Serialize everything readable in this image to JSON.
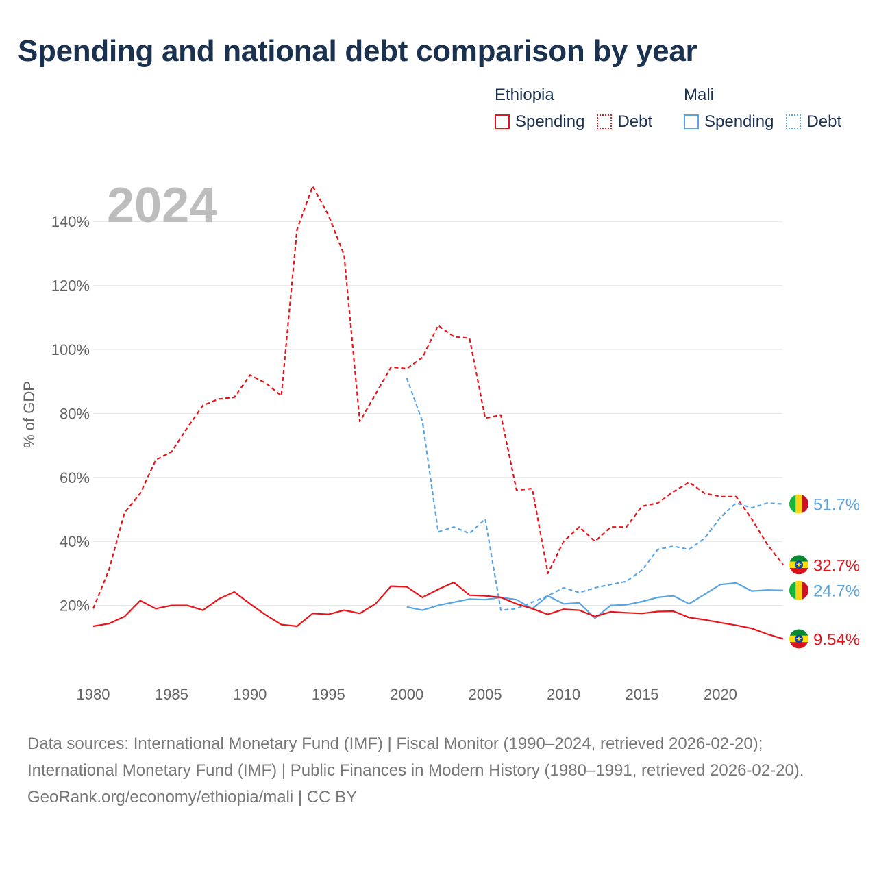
{
  "title": "Spending and national debt comparison by year",
  "legend": {
    "groups": [
      {
        "name": "Ethiopia",
        "spending_label": "Spending",
        "debt_label": "Debt",
        "color": "#e8141a"
      },
      {
        "name": "Mali",
        "spending_label": "Spending",
        "debt_label": "Debt",
        "color": "#5aa5e4"
      }
    ]
  },
  "footer": {
    "sources": "Data sources: International Monetary Fund (IMF) | Fiscal Monitor (1990–2024, retrieved 2026-02-20); International Monetary Fund (IMF) | Public Finances in Modern History (1980–1991, retrieved 2026-02-20).",
    "credit": "GeoRank.org/economy/ethiopia/mali | CC BY"
  },
  "chart_data": {
    "type": "line",
    "year_label": "2024",
    "ylabel": "% of GDP",
    "xlim": [
      1980,
      2024
    ],
    "ylim": [
      0,
      150
    ],
    "x_ticks": [
      1980,
      1985,
      1990,
      1995,
      2000,
      2005,
      2010,
      2015,
      2020
    ],
    "y_ticks": [
      20,
      40,
      60,
      80,
      100,
      120,
      140
    ],
    "y_tick_labels": [
      "20%",
      "40%",
      "60%",
      "80%",
      "100%",
      "120%",
      "140%"
    ],
    "series": [
      {
        "name": "Ethiopia Debt",
        "country": "Ethiopia",
        "measure": "Debt",
        "color": "#e8141a",
        "dashed": true,
        "end_label": "32.7%",
        "x": [
          1980,
          1981,
          1982,
          1983,
          1984,
          1985,
          1986,
          1987,
          1988,
          1989,
          1990,
          1991,
          1992,
          1993,
          1994,
          1995,
          1996,
          1997,
          1998,
          1999,
          2000,
          2001,
          2002,
          2003,
          2004,
          2005,
          2006,
          2007,
          2008,
          2009,
          2010,
          2011,
          2012,
          2013,
          2014,
          2015,
          2016,
          2017,
          2018,
          2019,
          2020,
          2021,
          2022,
          2023,
          2024
        ],
        "values": [
          19,
          31,
          49,
          55,
          65.5,
          68,
          75.5,
          82.5,
          84.5,
          85,
          92,
          89.5,
          85.5,
          137.5,
          151,
          142,
          129.5,
          77.5,
          86,
          94.5,
          94,
          97.5,
          107.5,
          104,
          103.5,
          78.5,
          79.5,
          56,
          56.5,
          30,
          40,
          44.5,
          40,
          44.5,
          44.5,
          51,
          52,
          55.5,
          58.5,
          55,
          54,
          54,
          47,
          39,
          32.7
        ]
      },
      {
        "name": "Mali Debt",
        "country": "Mali",
        "measure": "Debt",
        "color": "#5aa5e4",
        "dashed": true,
        "end_label": "51.7%",
        "x": [
          2000,
          2001,
          2002,
          2003,
          2004,
          2005,
          2006,
          2007,
          2008,
          2009,
          2010,
          2011,
          2012,
          2013,
          2014,
          2015,
          2016,
          2017,
          2018,
          2019,
          2020,
          2021,
          2022,
          2023,
          2024
        ],
        "values": [
          91,
          77.5,
          43,
          44.5,
          42.5,
          47,
          18.5,
          19,
          21,
          23,
          25.5,
          24,
          25.5,
          26.5,
          27.5,
          31,
          37.5,
          38.5,
          37.5,
          41,
          47.5,
          52,
          50.5,
          52,
          51.7
        ]
      },
      {
        "name": "Mali Spending",
        "country": "Mali",
        "measure": "Spending",
        "color": "#5aa5e4",
        "dashed": false,
        "end_label": "24.7%",
        "x": [
          2000,
          2001,
          2002,
          2003,
          2004,
          2005,
          2006,
          2007,
          2008,
          2009,
          2010,
          2011,
          2012,
          2013,
          2014,
          2015,
          2016,
          2017,
          2018,
          2019,
          2020,
          2021,
          2022,
          2023,
          2024
        ],
        "values": [
          19.5,
          18.5,
          20,
          21,
          22,
          21.8,
          22.5,
          21.8,
          19,
          23,
          20.5,
          20.8,
          16,
          20,
          20.2,
          21.2,
          22.5,
          23,
          20.5,
          23.5,
          26.5,
          27,
          24.5,
          24.8,
          24.7
        ]
      },
      {
        "name": "Ethiopia Spending",
        "country": "Ethiopia",
        "measure": "Spending",
        "color": "#e8141a",
        "dashed": false,
        "end_label": "9.54%",
        "x": [
          1980,
          1981,
          1982,
          1983,
          1984,
          1985,
          1986,
          1987,
          1988,
          1989,
          1990,
          1991,
          1992,
          1993,
          1994,
          1995,
          1996,
          1997,
          1998,
          1999,
          2000,
          2001,
          2002,
          2003,
          2004,
          2005,
          2006,
          2007,
          2008,
          2009,
          2010,
          2011,
          2012,
          2013,
          2014,
          2015,
          2016,
          2017,
          2018,
          2019,
          2020,
          2021,
          2022,
          2023,
          2024
        ],
        "values": [
          13.5,
          14.3,
          16.5,
          21.5,
          19,
          20,
          20,
          18.5,
          22,
          24.2,
          20.5,
          17,
          14,
          13.5,
          17.5,
          17.2,
          18.5,
          17.5,
          20.5,
          26,
          25.8,
          22.5,
          25,
          27.2,
          23.2,
          23,
          22.5,
          20.5,
          19,
          17.2,
          18.8,
          18.5,
          16.5,
          18,
          17.7,
          17.5,
          18.1,
          18.2,
          16.2,
          15.5,
          14.6,
          13.8,
          12.8,
          11,
          9.54
        ]
      }
    ]
  }
}
